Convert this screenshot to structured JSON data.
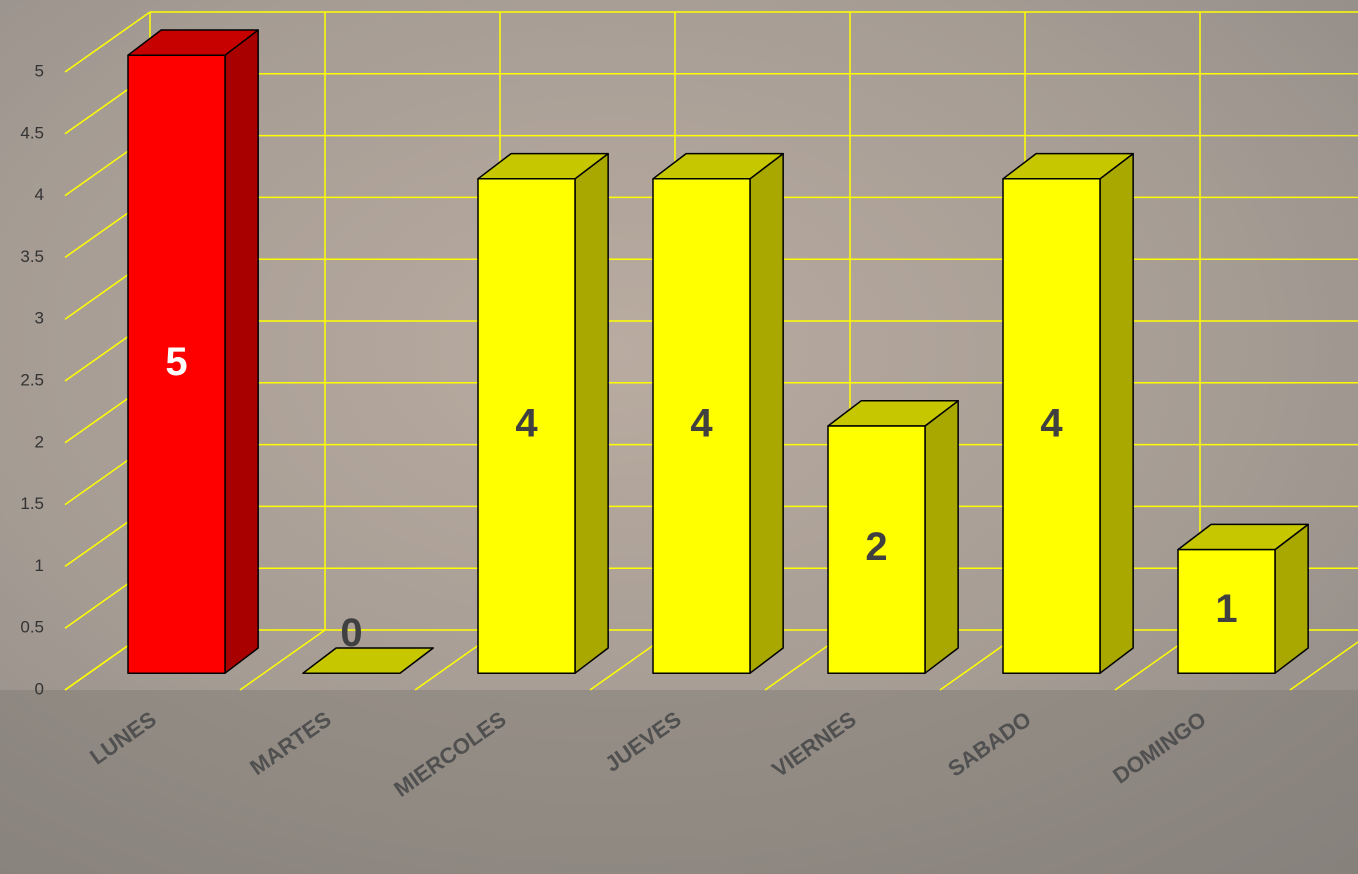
{
  "chart_data": {
    "type": "bar3d",
    "categories": [
      "LUNES",
      "MARTES",
      "MIERCOLES",
      "JUEVES",
      "VIERNES",
      "SABADO",
      "DOMINGO"
    ],
    "values": [
      5,
      0,
      4,
      4,
      2,
      4,
      1
    ],
    "colors": [
      "#ff0000",
      "#ffff00",
      "#ffff00",
      "#ffff00",
      "#ffff00",
      "#ffff00",
      "#ffff00"
    ],
    "ylim": [
      0,
      5
    ],
    "yticks": [
      0,
      0.5,
      1,
      1.5,
      2,
      2.5,
      3,
      3.5,
      4,
      4.5,
      5
    ],
    "grid": true,
    "grid_color": "#ffff00"
  }
}
